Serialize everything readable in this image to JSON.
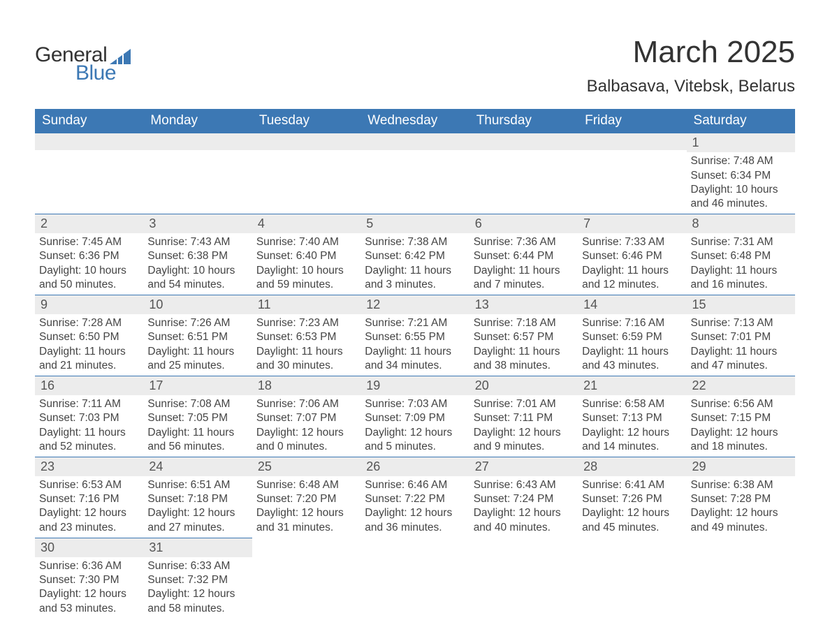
{
  "brand": {
    "name_part1": "General",
    "name_part2": "Blue",
    "logo_color": "#3c78b4",
    "text_color": "#333333"
  },
  "header": {
    "title": "March 2025",
    "location": "Balbasava, Vitebsk, Belarus",
    "title_fontsize": 44,
    "location_fontsize": 24
  },
  "styles": {
    "header_bg": "#3c78b4",
    "header_text": "#ffffff",
    "row_divider": "#3c78b4",
    "daynum_bg": "#ececec",
    "body_text": "#444444",
    "background": "#ffffff",
    "th_fontsize": 19,
    "daynum_fontsize": 18,
    "body_fontsize": 15.5
  },
  "weekdays": [
    "Sunday",
    "Monday",
    "Tuesday",
    "Wednesday",
    "Thursday",
    "Friday",
    "Saturday"
  ],
  "weeks": [
    [
      {
        "blank": true
      },
      {
        "blank": true
      },
      {
        "blank": true
      },
      {
        "blank": true
      },
      {
        "blank": true
      },
      {
        "blank": true
      },
      {
        "day": "1",
        "sunrise": "Sunrise: 7:48 AM",
        "sunset": "Sunset: 6:34 PM",
        "daylight": "Daylight: 10 hours and 46 minutes."
      }
    ],
    [
      {
        "day": "2",
        "sunrise": "Sunrise: 7:45 AM",
        "sunset": "Sunset: 6:36 PM",
        "daylight": "Daylight: 10 hours and 50 minutes."
      },
      {
        "day": "3",
        "sunrise": "Sunrise: 7:43 AM",
        "sunset": "Sunset: 6:38 PM",
        "daylight": "Daylight: 10 hours and 54 minutes."
      },
      {
        "day": "4",
        "sunrise": "Sunrise: 7:40 AM",
        "sunset": "Sunset: 6:40 PM",
        "daylight": "Daylight: 10 hours and 59 minutes."
      },
      {
        "day": "5",
        "sunrise": "Sunrise: 7:38 AM",
        "sunset": "Sunset: 6:42 PM",
        "daylight": "Daylight: 11 hours and 3 minutes."
      },
      {
        "day": "6",
        "sunrise": "Sunrise: 7:36 AM",
        "sunset": "Sunset: 6:44 PM",
        "daylight": "Daylight: 11 hours and 7 minutes."
      },
      {
        "day": "7",
        "sunrise": "Sunrise: 7:33 AM",
        "sunset": "Sunset: 6:46 PM",
        "daylight": "Daylight: 11 hours and 12 minutes."
      },
      {
        "day": "8",
        "sunrise": "Sunrise: 7:31 AM",
        "sunset": "Sunset: 6:48 PM",
        "daylight": "Daylight: 11 hours and 16 minutes."
      }
    ],
    [
      {
        "day": "9",
        "sunrise": "Sunrise: 7:28 AM",
        "sunset": "Sunset: 6:50 PM",
        "daylight": "Daylight: 11 hours and 21 minutes."
      },
      {
        "day": "10",
        "sunrise": "Sunrise: 7:26 AM",
        "sunset": "Sunset: 6:51 PM",
        "daylight": "Daylight: 11 hours and 25 minutes."
      },
      {
        "day": "11",
        "sunrise": "Sunrise: 7:23 AM",
        "sunset": "Sunset: 6:53 PM",
        "daylight": "Daylight: 11 hours and 30 minutes."
      },
      {
        "day": "12",
        "sunrise": "Sunrise: 7:21 AM",
        "sunset": "Sunset: 6:55 PM",
        "daylight": "Daylight: 11 hours and 34 minutes."
      },
      {
        "day": "13",
        "sunrise": "Sunrise: 7:18 AM",
        "sunset": "Sunset: 6:57 PM",
        "daylight": "Daylight: 11 hours and 38 minutes."
      },
      {
        "day": "14",
        "sunrise": "Sunrise: 7:16 AM",
        "sunset": "Sunset: 6:59 PM",
        "daylight": "Daylight: 11 hours and 43 minutes."
      },
      {
        "day": "15",
        "sunrise": "Sunrise: 7:13 AM",
        "sunset": "Sunset: 7:01 PM",
        "daylight": "Daylight: 11 hours and 47 minutes."
      }
    ],
    [
      {
        "day": "16",
        "sunrise": "Sunrise: 7:11 AM",
        "sunset": "Sunset: 7:03 PM",
        "daylight": "Daylight: 11 hours and 52 minutes."
      },
      {
        "day": "17",
        "sunrise": "Sunrise: 7:08 AM",
        "sunset": "Sunset: 7:05 PM",
        "daylight": "Daylight: 11 hours and 56 minutes."
      },
      {
        "day": "18",
        "sunrise": "Sunrise: 7:06 AM",
        "sunset": "Sunset: 7:07 PM",
        "daylight": "Daylight: 12 hours and 0 minutes."
      },
      {
        "day": "19",
        "sunrise": "Sunrise: 7:03 AM",
        "sunset": "Sunset: 7:09 PM",
        "daylight": "Daylight: 12 hours and 5 minutes."
      },
      {
        "day": "20",
        "sunrise": "Sunrise: 7:01 AM",
        "sunset": "Sunset: 7:11 PM",
        "daylight": "Daylight: 12 hours and 9 minutes."
      },
      {
        "day": "21",
        "sunrise": "Sunrise: 6:58 AM",
        "sunset": "Sunset: 7:13 PM",
        "daylight": "Daylight: 12 hours and 14 minutes."
      },
      {
        "day": "22",
        "sunrise": "Sunrise: 6:56 AM",
        "sunset": "Sunset: 7:15 PM",
        "daylight": "Daylight: 12 hours and 18 minutes."
      }
    ],
    [
      {
        "day": "23",
        "sunrise": "Sunrise: 6:53 AM",
        "sunset": "Sunset: 7:16 PM",
        "daylight": "Daylight: 12 hours and 23 minutes."
      },
      {
        "day": "24",
        "sunrise": "Sunrise: 6:51 AM",
        "sunset": "Sunset: 7:18 PM",
        "daylight": "Daylight: 12 hours and 27 minutes."
      },
      {
        "day": "25",
        "sunrise": "Sunrise: 6:48 AM",
        "sunset": "Sunset: 7:20 PM",
        "daylight": "Daylight: 12 hours and 31 minutes."
      },
      {
        "day": "26",
        "sunrise": "Sunrise: 6:46 AM",
        "sunset": "Sunset: 7:22 PM",
        "daylight": "Daylight: 12 hours and 36 minutes."
      },
      {
        "day": "27",
        "sunrise": "Sunrise: 6:43 AM",
        "sunset": "Sunset: 7:24 PM",
        "daylight": "Daylight: 12 hours and 40 minutes."
      },
      {
        "day": "28",
        "sunrise": "Sunrise: 6:41 AM",
        "sunset": "Sunset: 7:26 PM",
        "daylight": "Daylight: 12 hours and 45 minutes."
      },
      {
        "day": "29",
        "sunrise": "Sunrise: 6:38 AM",
        "sunset": "Sunset: 7:28 PM",
        "daylight": "Daylight: 12 hours and 49 minutes."
      }
    ],
    [
      {
        "day": "30",
        "sunrise": "Sunrise: 6:36 AM",
        "sunset": "Sunset: 7:30 PM",
        "daylight": "Daylight: 12 hours and 53 minutes."
      },
      {
        "day": "31",
        "sunrise": "Sunrise: 6:33 AM",
        "sunset": "Sunset: 7:32 PM",
        "daylight": "Daylight: 12 hours and 58 minutes."
      },
      {
        "blank": true
      },
      {
        "blank": true
      },
      {
        "blank": true
      },
      {
        "blank": true
      },
      {
        "blank": true
      }
    ]
  ]
}
